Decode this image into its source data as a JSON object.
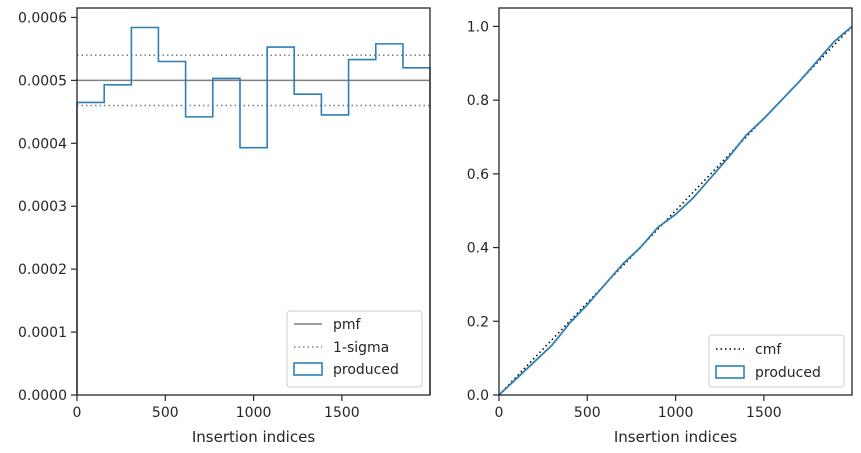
{
  "chart_data": [
    {
      "type": "step",
      "xlabel": "Insertion indices",
      "ylabel": "",
      "xlim": [
        0,
        1999
      ],
      "ylim": [
        0,
        0.000615
      ],
      "xticks": [
        0,
        500,
        1000,
        1500
      ],
      "xtick_labels": [
        "0",
        "500",
        "1000",
        "1500"
      ],
      "yticks": [
        0,
        0.0001,
        0.0002,
        0.0003,
        0.0004,
        0.0005,
        0.0006
      ],
      "ytick_labels": [
        "0.0000",
        "0.0001",
        "0.0002",
        "0.0003",
        "0.0004",
        "0.0005",
        "0.0006"
      ],
      "grid": false,
      "legend_position": "lower right",
      "colors": {
        "produced": "#2f7fb5",
        "pmf": "#7f7f7f",
        "sigma": "#7f7f7f"
      },
      "pmf": 0.0005,
      "sigma_band": [
        0.00046,
        0.00054
      ],
      "legend": [
        "pmf",
        "1-sigma",
        "produced"
      ],
      "bins": {
        "edges": [
          0,
          154,
          308,
          461,
          615,
          769,
          923,
          1077,
          1230,
          1384,
          1538,
          1692,
          1846,
          1999
        ],
        "values": [
          0.000465,
          0.000493,
          0.000584,
          0.00053,
          0.000442,
          0.000503,
          0.000393,
          0.000553,
          0.000478,
          0.000445,
          0.000533,
          0.000558,
          0.00052
        ]
      }
    },
    {
      "type": "line",
      "xlabel": "Insertion indices",
      "ylabel": "",
      "xlim": [
        0,
        1999
      ],
      "ylim": [
        0,
        1.05
      ],
      "xticks": [
        0,
        500,
        1000,
        1500
      ],
      "xtick_labels": [
        "0",
        "500",
        "1000",
        "1500"
      ],
      "yticks": [
        0,
        0.2,
        0.4,
        0.6,
        0.8,
        1.0
      ],
      "ytick_labels": [
        "0.0",
        "0.2",
        "0.4",
        "0.6",
        "0.8",
        "1.0"
      ],
      "grid": false,
      "legend_position": "lower right",
      "colors": {
        "produced": "#2f7fb5",
        "cmf": "#000000"
      },
      "legend": [
        "cmf",
        "produced"
      ],
      "cmf": {
        "x": [
          0,
          1999
        ],
        "y": [
          0,
          1.0
        ]
      },
      "produced": {
        "x": [
          0,
          100,
          200,
          300,
          400,
          500,
          600,
          700,
          800,
          900,
          1000,
          1100,
          1200,
          1300,
          1400,
          1500,
          1600,
          1700,
          1800,
          1900,
          1999
        ],
        "y": [
          0,
          0.045,
          0.09,
          0.135,
          0.195,
          0.245,
          0.3,
          0.355,
          0.4,
          0.455,
          0.49,
          0.535,
          0.59,
          0.645,
          0.705,
          0.75,
          0.8,
          0.85,
          0.905,
          0.96,
          1.0
        ]
      }
    }
  ]
}
